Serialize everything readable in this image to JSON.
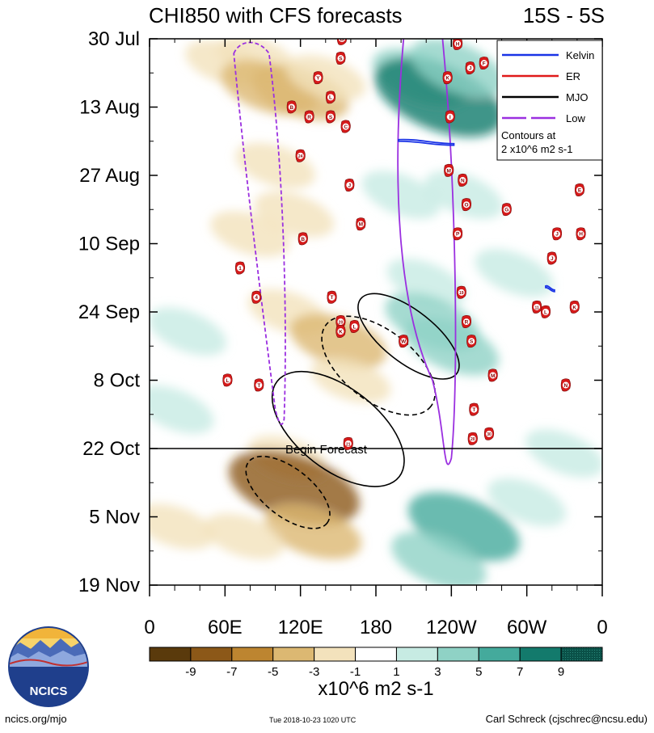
{
  "title_left": "CHI850 with CFS forecasts",
  "title_right": "15S - 5S",
  "chart_data": {
    "type": "heatmap",
    "variable": "CHI850",
    "x_ticks": [
      "0",
      "60E",
      "120E",
      "180",
      "120W",
      "60W",
      "0"
    ],
    "x_tick_values": [
      0,
      60,
      120,
      180,
      240,
      300,
      360
    ],
    "xlim": [
      0,
      360
    ],
    "y_ticks": [
      "30 Jul",
      "13 Aug",
      "27 Aug",
      "10 Sep",
      "24 Sep",
      "8 Oct",
      "22 Oct",
      "5 Nov",
      "19 Nov"
    ],
    "y_tick_days": [
      0,
      14,
      28,
      42,
      56,
      70,
      84,
      98,
      112
    ],
    "ylim_days": [
      0,
      112
    ],
    "forecast_start_day": 84,
    "forecast_label": "Begin Forecast",
    "colorbar": {
      "levels": [
        "-9",
        "-7",
        "-5",
        "-3",
        "-1",
        "1",
        "3",
        "5",
        "7",
        "9"
      ],
      "colors": [
        "#5a3a0c",
        "#8c5818",
        "#bd8530",
        "#dcb872",
        "#f3e2bc",
        "#ffffff",
        "#c7ebe3",
        "#8fd2c5",
        "#44aa9c",
        "#137a6c",
        "#0a5148"
      ],
      "units": "x10^6 m2 s-1"
    },
    "legend": {
      "placement": "top-right",
      "entries": [
        {
          "label": "Kelvin",
          "color": "#1a33e6"
        },
        {
          "label": "ER",
          "color": "#e01a1a"
        },
        {
          "label": "MJO",
          "color": "#000000"
        },
        {
          "label": "Low",
          "color": "#9b30e0"
        }
      ],
      "note_line1": "Contours at",
      "note_line2": "2 x10^6 m2 s-1"
    },
    "anomaly_blobs": [
      {
        "lon": 60,
        "day": 5,
        "val": -3
      },
      {
        "lon": 85,
        "day": 4,
        "val": -3
      },
      {
        "lon": 95,
        "day": 10,
        "val": -5
      },
      {
        "lon": 120,
        "day": 11,
        "val": -5
      },
      {
        "lon": 140,
        "day": 8,
        "val": -3
      },
      {
        "lon": 100,
        "day": 26,
        "val": -3
      },
      {
        "lon": 80,
        "day": 40,
        "val": -3
      },
      {
        "lon": 115,
        "day": 36,
        "val": -3
      },
      {
        "lon": 110,
        "day": 56,
        "val": -3
      },
      {
        "lon": 150,
        "day": 62,
        "val": -5
      },
      {
        "lon": 160,
        "day": 70,
        "val": -3
      },
      {
        "lon": 110,
        "day": 86,
        "val": -3
      },
      {
        "lon": 115,
        "day": 92,
        "val": -9
      },
      {
        "lon": 130,
        "day": 101,
        "val": -5
      },
      {
        "lon": 75,
        "day": 102,
        "val": -3
      },
      {
        "lon": 20,
        "day": 100,
        "val": -3
      },
      {
        "lon": 215,
        "day": 8,
        "val": 5
      },
      {
        "lon": 230,
        "day": 12,
        "val": 9
      },
      {
        "lon": 245,
        "day": 6,
        "val": 5
      },
      {
        "lon": 200,
        "day": 32,
        "val": 3
      },
      {
        "lon": 250,
        "day": 32,
        "val": 3
      },
      {
        "lon": 220,
        "day": 50,
        "val": 3
      },
      {
        "lon": 225,
        "day": 58,
        "val": 5
      },
      {
        "lon": 240,
        "day": 63,
        "val": 5
      },
      {
        "lon": 290,
        "day": 48,
        "val": 3
      },
      {
        "lon": 30,
        "day": 60,
        "val": 3
      },
      {
        "lon": 20,
        "day": 76,
        "val": 3
      },
      {
        "lon": 250,
        "day": 100,
        "val": 7
      },
      {
        "lon": 230,
        "day": 107,
        "val": 5
      },
      {
        "lon": 300,
        "day": 95,
        "val": 3
      },
      {
        "lon": 330,
        "day": 85,
        "val": 3
      }
    ],
    "mjo_contours": [
      {
        "lon_center": 206,
        "day_center": 61,
        "rx_deg": 22,
        "ry_days": 14,
        "style": "solid"
      },
      {
        "lon_center": 182,
        "day_center": 67,
        "rx_deg": 24,
        "ry_days": 19,
        "style": "dashed"
      },
      {
        "lon_center": 150,
        "day_center": 80,
        "rx_deg": 28,
        "ry_days": 22,
        "style": "solid"
      },
      {
        "lon_center": 110,
        "day_center": 93,
        "rx_deg": 18,
        "ry_days": 13,
        "style": "dashed"
      }
    ],
    "low_contours": [
      {
        "lon_center": 100,
        "day_center": 41,
        "style": "dashed"
      },
      {
        "lon_center": 233,
        "day_center": 50,
        "style": "solid"
      }
    ],
    "kelvin_contours": [
      {
        "lon_start": 198,
        "lon_end": 242,
        "day": 21
      },
      {
        "lon_start": 315,
        "lon_end": 322,
        "day": 51
      }
    ],
    "storms": [
      {
        "label": "B",
        "lon": 153,
        "day": 0
      },
      {
        "label": "S",
        "lon": 152,
        "day": 4
      },
      {
        "label": "Y",
        "lon": 134,
        "day": 8
      },
      {
        "label": "L",
        "lon": 144,
        "day": 12
      },
      {
        "label": "B",
        "lon": 113,
        "day": 14
      },
      {
        "label": "R",
        "lon": 127,
        "day": 16
      },
      {
        "label": "S",
        "lon": 144,
        "day": 16
      },
      {
        "label": "C",
        "lon": 156,
        "day": 18
      },
      {
        "label": "24",
        "lon": 120,
        "day": 24
      },
      {
        "label": "J",
        "lon": 159,
        "day": 30
      },
      {
        "label": "H",
        "lon": 245,
        "day": 1
      },
      {
        "label": "K",
        "lon": 237,
        "day": 8
      },
      {
        "label": "J",
        "lon": 255,
        "day": 6
      },
      {
        "label": "F",
        "lon": 266,
        "day": 5
      },
      {
        "label": "I",
        "lon": 239,
        "day": 16
      },
      {
        "label": "M",
        "lon": 238,
        "day": 27
      },
      {
        "label": "N",
        "lon": 249,
        "day": 29
      },
      {
        "label": "O",
        "lon": 252,
        "day": 34
      },
      {
        "label": "G",
        "lon": 284,
        "day": 35
      },
      {
        "label": "E",
        "lon": 342,
        "day": 31
      },
      {
        "label": "M",
        "lon": 168,
        "day": 38
      },
      {
        "label": "P",
        "lon": 245,
        "day": 40
      },
      {
        "label": "J",
        "lon": 324,
        "day": 40
      },
      {
        "label": "H",
        "lon": 343,
        "day": 40
      },
      {
        "label": "B",
        "lon": 122,
        "day": 41
      },
      {
        "label": "J",
        "lon": 320,
        "day": 45
      },
      {
        "label": "1",
        "lon": 72,
        "day": 47
      },
      {
        "label": "4",
        "lon": 85,
        "day": 53
      },
      {
        "label": "T",
        "lon": 145,
        "day": 53
      },
      {
        "label": "19",
        "lon": 248,
        "day": 52
      },
      {
        "label": "11",
        "lon": 308,
        "day": 55
      },
      {
        "label": "L",
        "lon": 315,
        "day": 56
      },
      {
        "label": "K",
        "lon": 338,
        "day": 55
      },
      {
        "label": "R",
        "lon": 252,
        "day": 58
      },
      {
        "label": "20",
        "lon": 152,
        "day": 58
      },
      {
        "label": "L",
        "lon": 163,
        "day": 59
      },
      {
        "label": "K",
        "lon": 152,
        "day": 60
      },
      {
        "label": "W",
        "lon": 202,
        "day": 62
      },
      {
        "label": "S",
        "lon": 256,
        "day": 62
      },
      {
        "label": "M",
        "lon": 273,
        "day": 69
      },
      {
        "label": "L",
        "lon": 62,
        "day": 70
      },
      {
        "label": "T",
        "lon": 87,
        "day": 71
      },
      {
        "label": "N",
        "lon": 331,
        "day": 71
      },
      {
        "label": "T",
        "lon": 258,
        "day": 76
      },
      {
        "label": "21",
        "lon": 158,
        "day": 83
      },
      {
        "label": "20",
        "lon": 257,
        "day": 82
      },
      {
        "label": "30",
        "lon": 270,
        "day": 81
      }
    ]
  },
  "footer": {
    "logo_text": "NCICS",
    "left": "ncics.org/mjo",
    "center": "Tue 2018-10-23 1020 UTC",
    "right": "Carl Schreck (cjschrec@ncsu.edu)"
  }
}
